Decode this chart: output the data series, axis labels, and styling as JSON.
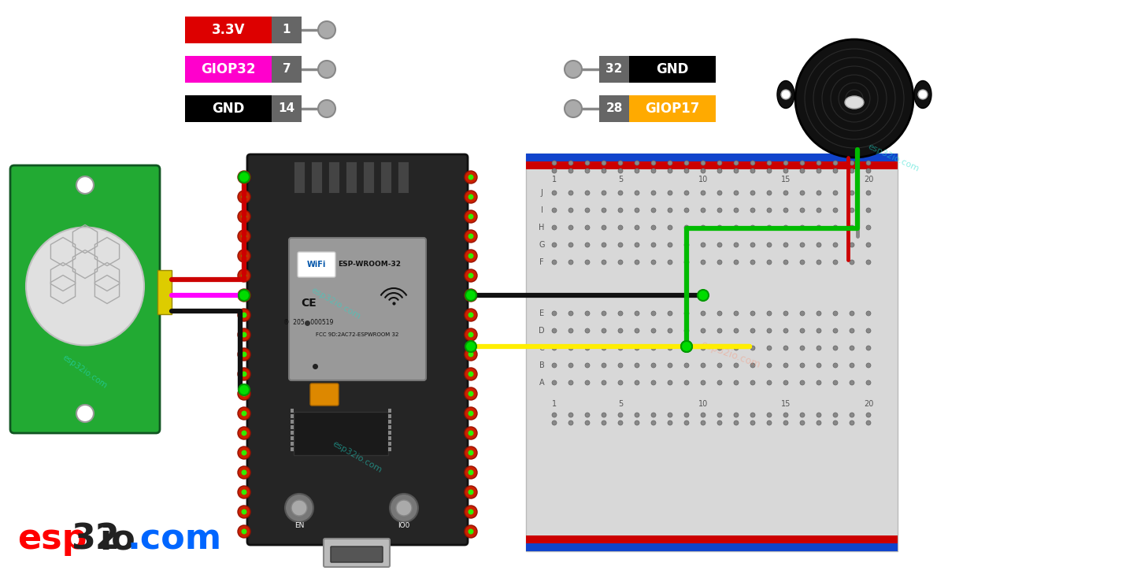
{
  "bg_color": "#ffffff",
  "pin_labels_left": [
    {
      "text": "3.3V",
      "pin": "1",
      "bg": "#dd0000",
      "text_color": "#ffffff"
    },
    {
      "text": "GIOP32",
      "pin": "7",
      "bg": "#ff00cc",
      "text_color": "#ffffff"
    },
    {
      "text": "GND",
      "pin": "14",
      "bg": "#000000",
      "text_color": "#ffffff"
    }
  ],
  "pin_labels_right": [
    {
      "text": "GND",
      "pin": "32",
      "bg": "#000000",
      "text_color": "#ffffff"
    },
    {
      "text": "GIOP17",
      "pin": "28",
      "bg": "#ffaa00",
      "text_color": "#ffffff"
    }
  ],
  "wire_3v3": "#cc0000",
  "wire_signal": "#ff00ff",
  "wire_gnd": "#111111",
  "wire_yellow": "#ffee00",
  "wire_green": "#00bb00",
  "wire_black": "#111111",
  "pir_green": "#22aa33",
  "pir_dark": "#115522",
  "esp_dark": "#252525",
  "esp_mid": "#333333",
  "esp_module": "#999999",
  "bb_bg": "#d8d8d8",
  "bb_rail_red": "#cc0000",
  "bb_rail_blu": "#1144cc",
  "dot_red": "#cc2200",
  "dot_green": "#33ee00",
  "brand_esp": "#ff0000",
  "brand_32io": "#222222",
  "brand_com": "#0066ff",
  "wm_color": "#22ddcc"
}
